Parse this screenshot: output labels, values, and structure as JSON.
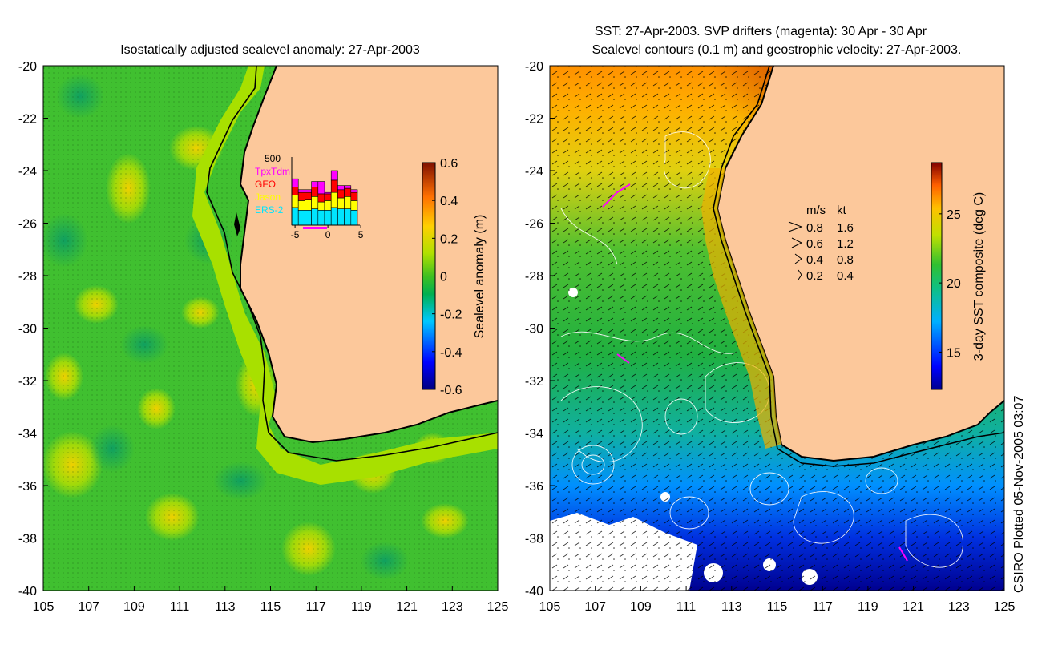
{
  "left_panel": {
    "title": "Isostatically adjusted sealevel anomaly: 27-Apr-2003",
    "colorbar": {
      "label": "Sealevel anomaly (m)",
      "ticks": [
        "0.6",
        "0.4",
        "0.2",
        "0",
        "-0.2",
        "-0.4",
        "-0.6"
      ],
      "range": [
        -0.6,
        0.6
      ]
    },
    "inset": {
      "ymax_label": "500",
      "legend": [
        {
          "name": "TpxTdm",
          "color": "#ff00ff"
        },
        {
          "name": "GFO",
          "color": "#ff0000"
        },
        {
          "name": "Jason",
          "color": "#ffff00"
        },
        {
          "name": "ERS-2",
          "color": "#00e5ff"
        }
      ],
      "x_ticks": [
        "-5",
        "0",
        "5"
      ],
      "days": [
        -5,
        -4,
        -3,
        -2,
        -1,
        0,
        1,
        2,
        3,
        4
      ],
      "stacks": [
        {
          "ERS-2": 130,
          "Jason": 90,
          "GFO": 60,
          "TpxTdm": 60
        },
        {
          "ERS-2": 110,
          "Jason": 70,
          "GFO": 60,
          "TpxTdm": 20
        },
        {
          "ERS-2": 110,
          "Jason": 80,
          "GFO": 50,
          "TpxTdm": 20
        },
        {
          "ERS-2": 120,
          "Jason": 90,
          "GFO": 70,
          "TpxTdm": 40
        },
        {
          "ERS-2": 110,
          "Jason": 60,
          "GFO": 60,
          "TpxTdm": 90
        },
        {
          "ERS-2": 110,
          "Jason": 70,
          "GFO": 50,
          "TpxTdm": 10
        },
        {
          "ERS-2": 130,
          "Jason": 110,
          "GFO": 90,
          "TpxTdm": 70
        },
        {
          "ERS-2": 120,
          "Jason": 80,
          "GFO": 60,
          "TpxTdm": 30
        },
        {
          "ERS-2": 120,
          "Jason": 90,
          "GFO": 60,
          "TpxTdm": 20
        },
        {
          "ERS-2": 110,
          "Jason": 70,
          "GFO": 60,
          "TpxTdm": 20
        }
      ]
    }
  },
  "right_panel": {
    "title_line1": "SST: 27-Apr-2003. SVP drifters (magenta): 30 Apr - 30 Apr",
    "title_line2": "Sealevel contours (0.1 m) and geostrophic velocity: 27-Apr-2003.",
    "colorbar": {
      "label": "3-day SST composite (deg C)",
      "ticks": [
        "25",
        "20",
        "15"
      ],
      "range": [
        12.3,
        28.7
      ]
    },
    "velocity_legend": {
      "header_ms": "m/s",
      "header_kt": "kt",
      "rows": [
        {
          "ms": "0.8",
          "kt": "1.6"
        },
        {
          "ms": "0.6",
          "kt": "1.2"
        },
        {
          "ms": "0.4",
          "kt": "0.8"
        },
        {
          "ms": "0.2",
          "kt": "0.4"
        }
      ]
    }
  },
  "axes": {
    "lat_ticks": [
      "-20",
      "-22",
      "-24",
      "-26",
      "-28",
      "-30",
      "-32",
      "-34",
      "-36",
      "-38",
      "-40"
    ],
    "lon_ticks": [
      "105",
      "107",
      "109",
      "111",
      "113",
      "115",
      "117",
      "119",
      "121",
      "123",
      "125"
    ]
  },
  "credit": "CSIRO Plotted 05-Nov-2005 03:07",
  "colors": {
    "land": "#fcc89b",
    "coast": "#000000"
  }
}
